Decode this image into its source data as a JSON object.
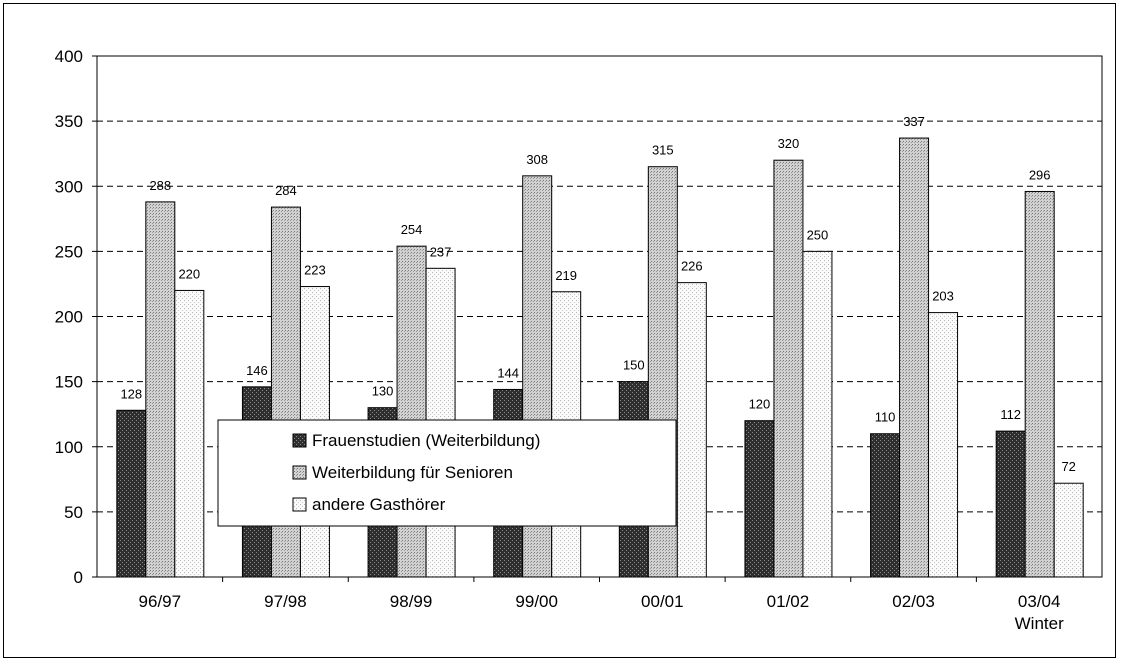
{
  "chart_data": {
    "type": "bar",
    "categories": [
      "96/97",
      "97/98",
      "98/99",
      "99/00",
      "00/01",
      "01/02",
      "02/03",
      "03/04\nWinter"
    ],
    "series": [
      {
        "name": "Frauenstudien (Weiterbildung)",
        "values": [
          128,
          146,
          130,
          144,
          150,
          120,
          110,
          112
        ],
        "labels": [
          "128",
          "146",
          "130",
          "144",
          "150",
          "120",
          "110",
          "112"
        ],
        "pattern": "dark-crosshatch",
        "color": "#3a3a3a"
      },
      {
        "name": "Weiterbildung für Senioren",
        "values": [
          288,
          284,
          254,
          308,
          315,
          320,
          337,
          296
        ],
        "labels": [
          "288",
          "284",
          "254",
          "308",
          "315",
          "320",
          "337",
          "296"
        ],
        "pattern": "light-dots",
        "color": "#bdbdbd"
      },
      {
        "name": "andere Gasthörer",
        "values": [
          220,
          223,
          237,
          219,
          226,
          250,
          203,
          72
        ],
        "labels": [
          "220",
          "223",
          "237",
          "219",
          "226",
          "250",
          "203",
          "72"
        ],
        "pattern": "sparse-dots",
        "color": "#ededed"
      }
    ],
    "ylim": [
      0,
      400
    ],
    "yticks": [
      "0",
      "50",
      "100",
      "150",
      "200",
      "250",
      "300",
      "350",
      "400"
    ],
    "grid": true,
    "grid_style": "dashed",
    "legend_position": "lower-left inside plot"
  }
}
